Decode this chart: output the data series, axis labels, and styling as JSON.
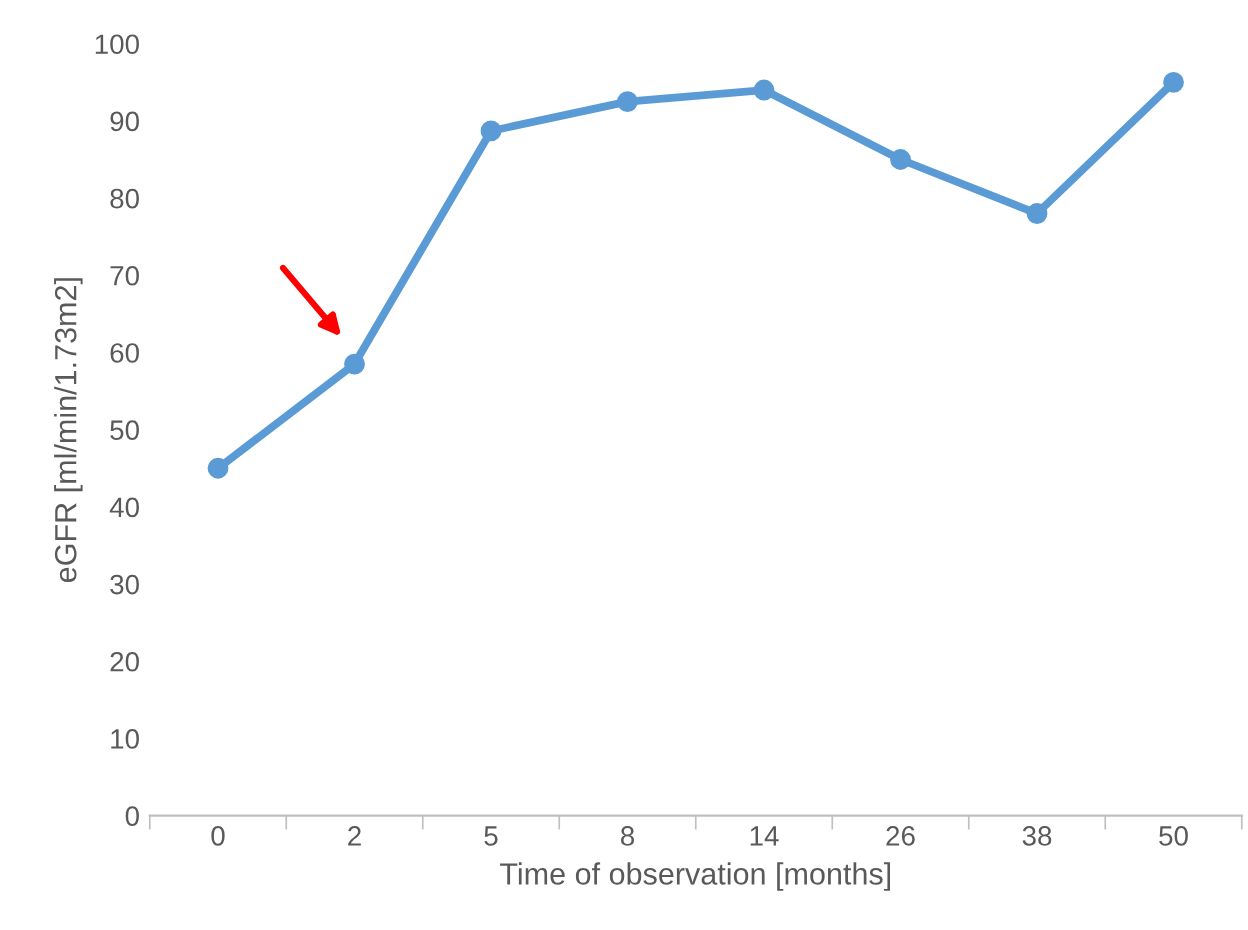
{
  "chart_data": {
    "type": "line",
    "xlabel": "Time of observation [months]",
    "ylabel": "eGFR [ml/min/1.73m2]",
    "categories": [
      "0",
      "2",
      "5",
      "8",
      "14",
      "26",
      "38",
      "50"
    ],
    "series": [
      {
        "color": "#5b9bd5",
        "values": [
          45,
          58.5,
          88.7,
          92.5,
          94,
          85,
          78,
          95
        ]
      }
    ],
    "ylim": [
      0,
      100
    ],
    "yticks": [
      0,
      10,
      20,
      30,
      40,
      50,
      60,
      70,
      80,
      90,
      100
    ],
    "grid": false,
    "legend": false,
    "marker": "circle",
    "line_style": "solid"
  }
}
